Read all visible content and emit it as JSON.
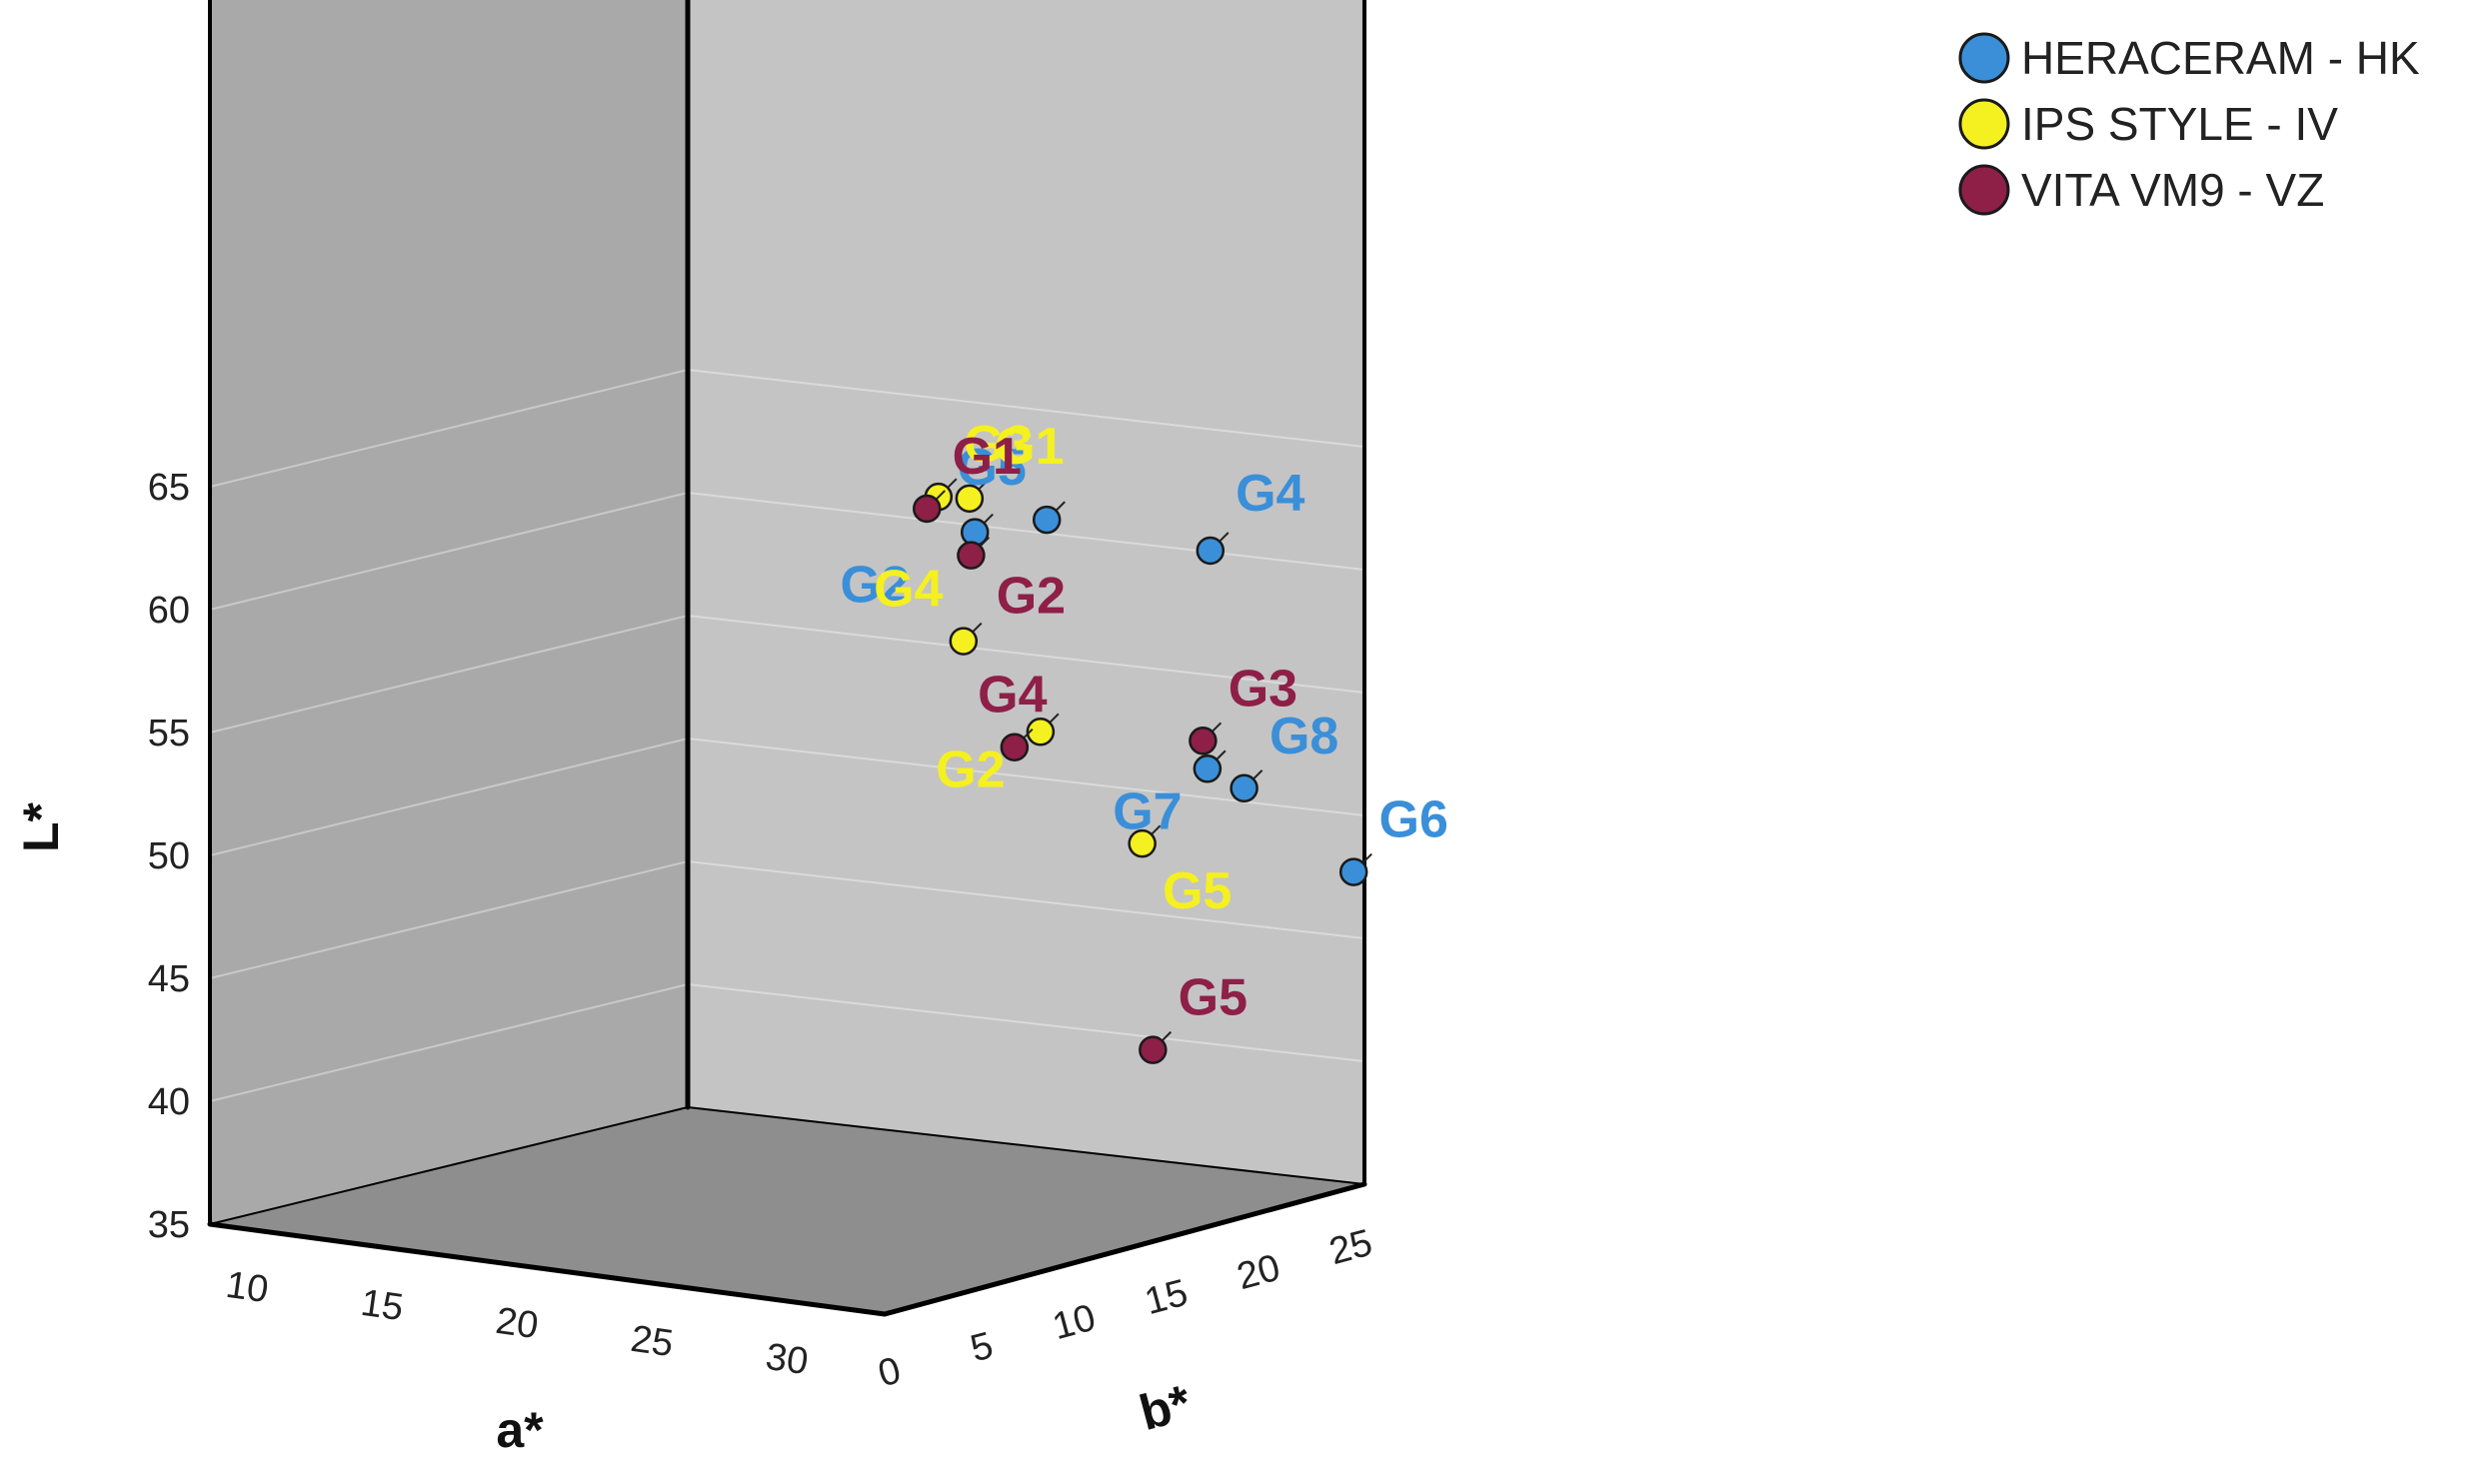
{
  "chart_data": {
    "type": "scatter",
    "title": "",
    "xlabel": "a*",
    "ylabel": "L*",
    "zlabel": "b*",
    "x_ticks": [
      "10",
      "15",
      "20",
      "25",
      "30"
    ],
    "y_ticks": [
      "35",
      "40",
      "45",
      "50",
      "55",
      "60",
      "65"
    ],
    "z_ticks": [
      "0",
      "5",
      "10",
      "15",
      "20",
      "25"
    ],
    "legend_position": "top-right",
    "grid": true,
    "series": [
      {
        "name": "HERACERAM - HK",
        "color": "#3a8fd8",
        "points": [
          {
            "label": "G5",
            "a": 19.7,
            "L": 64.9,
            "b": 2.0
          },
          {
            "label": "G2",
            "a": 30.6,
            "L": 60.8,
            "b": 12.8
          },
          {
            "label": "G4",
            "a": 30.7,
            "L": 61.3,
            "b": 3.8
          },
          {
            "label": "G7",
            "a": 37.2,
            "L": 50.5,
            "b": 8.7
          },
          {
            "label": "G8",
            "a": 37.9,
            "L": 49.7,
            "b": 7.8
          },
          {
            "label": "G6",
            "a": 38.2,
            "L": 46.8,
            "b": 3.8
          }
        ]
      },
      {
        "name": "IPS STYLE - IV",
        "color": "#f5f020",
        "points": [
          {
            "label": "G1",
            "a": 21.9,
            "L": 64.7,
            "b": 6.6
          },
          {
            "label": "G3",
            "a": 25.3,
            "L": 63.6,
            "b": 10.3
          },
          {
            "label": "G4",
            "a": 26.2,
            "L": 57.6,
            "b": 10.0
          },
          {
            "label": "G2",
            "a": 22.9,
            "L": 55.3,
            "b": 4.6
          },
          {
            "label": "G5",
            "a": 27.0,
            "L": 50.1,
            "b": 3.7
          }
        ]
      },
      {
        "name": "VITA VM9 - VZ",
        "color": "#8e1f47",
        "points": [
          {
            "label": "G1",
            "a": 32.3,
            "L": 61.0,
            "b": 15.9
          },
          {
            "label": "G2",
            "a": 30.4,
            "L": 59.9,
            "b": 12.8
          },
          {
            "label": "G4",
            "a": 30.5,
            "L": 52.3,
            "b": 11.2
          },
          {
            "label": "G3",
            "a": 35.2,
            "L": 52.2,
            "b": 7.4
          },
          {
            "label": "G5",
            "a": 26.2,
            "L": 42.0,
            "b": 2.7
          }
        ]
      }
    ]
  }
}
